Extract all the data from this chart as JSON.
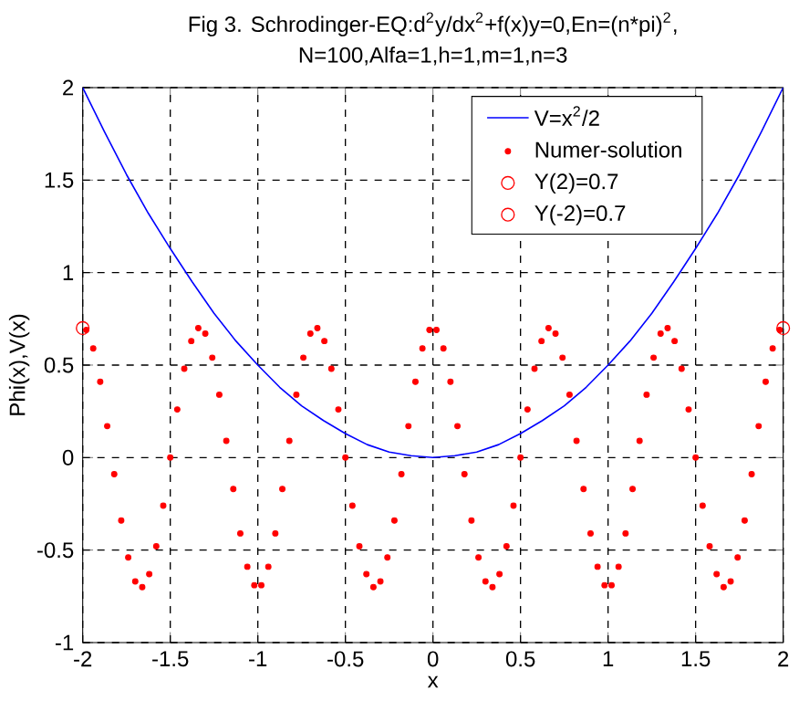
{
  "chart_data": {
    "type": "scatter",
    "title": "Fig 3. Schrodinger-EQ:d$^{2}$y/dx$^{2}$+f(x)y=0,En=(n*pi)$^{2}$,",
    "subtitle": "N=100,Alfa=1,h=1,m=1,n=3",
    "xlabel": "x",
    "ylabel": "Phi(x),V(x)",
    "xlim": [
      -2,
      2
    ],
    "ylim": [
      -1,
      2
    ],
    "xticks": [
      -2,
      -1.5,
      -1,
      -0.5,
      0,
      0.5,
      1,
      1.5,
      2
    ],
    "yticks": [
      -1,
      -0.5,
      0,
      0.5,
      1,
      1.5,
      2
    ],
    "grid": true,
    "legend": "top right",
    "series": [
      {
        "name": "V=x$^{2}$/2",
        "type": "line",
        "color": "#0000ff",
        "marker": "none",
        "line_style": "solid",
        "x": [
          -2,
          -1.875,
          -1.75,
          -1.625,
          -1.5,
          -1.375,
          -1.25,
          -1.125,
          -1,
          -0.875,
          -0.75,
          -0.625,
          -0.5,
          -0.375,
          -0.25,
          -0.125,
          0,
          0.125,
          0.25,
          0.375,
          0.5,
          0.625,
          0.75,
          0.875,
          1,
          1.125,
          1.25,
          1.375,
          1.5,
          1.625,
          1.75,
          1.875,
          2
        ],
        "values": [
          2,
          1.76,
          1.53,
          1.32,
          1.13,
          0.95,
          0.78,
          0.63,
          0.5,
          0.38,
          0.28,
          0.2,
          0.13,
          0.07,
          0.03,
          0.01,
          0,
          0.01,
          0.03,
          0.07,
          0.13,
          0.2,
          0.28,
          0.38,
          0.5,
          0.63,
          0.78,
          0.95,
          1.13,
          1.32,
          1.53,
          1.76,
          2
        ]
      },
      {
        "name": "Numer-solution",
        "color": "#ff0000",
        "marker": "circle",
        "x": [
          -1.98,
          -1.94,
          -1.9,
          -1.86,
          -1.82,
          -1.78,
          -1.74,
          -1.7,
          -1.66,
          -1.62,
          -1.58,
          -1.54,
          -1.5,
          -1.46,
          -1.42,
          -1.38,
          -1.34,
          -1.3,
          -1.26,
          -1.22,
          -1.18,
          -1.14,
          -1.1,
          -1.06,
          -1.02,
          -0.98,
          -0.94,
          -0.9,
          -0.86,
          -0.82,
          -0.78,
          -0.74,
          -0.7,
          -0.66,
          -0.62,
          -0.58,
          -0.54,
          -0.5,
          -0.46,
          -0.42,
          -0.38,
          -0.34,
          -0.3,
          -0.26,
          -0.22,
          -0.18,
          -0.14,
          -0.1,
          -0.06,
          -0.02,
          0.02,
          0.06,
          0.1,
          0.14,
          0.18,
          0.22,
          0.26,
          0.3,
          0.34,
          0.38,
          0.42,
          0.46,
          0.5,
          0.54,
          0.58,
          0.62,
          0.66,
          0.7,
          0.74,
          0.78,
          0.82,
          0.86,
          0.9,
          0.94,
          0.98,
          1.02,
          1.06,
          1.1,
          1.14,
          1.18,
          1.22,
          1.26,
          1.3,
          1.34,
          1.38,
          1.42,
          1.46,
          1.5,
          1.54,
          1.58,
          1.62,
          1.66,
          1.7,
          1.74,
          1.78,
          1.82,
          1.86,
          1.9,
          1.94,
          1.98
        ],
        "values": [
          0.69,
          0.59,
          0.41,
          0.17,
          -0.09,
          -0.34,
          -0.54,
          -0.67,
          -0.7,
          -0.63,
          -0.48,
          -0.26,
          0.0,
          0.26,
          0.48,
          0.63,
          0.7,
          0.67,
          0.54,
          0.34,
          0.09,
          -0.17,
          -0.41,
          -0.59,
          -0.69,
          -0.69,
          -0.59,
          -0.41,
          -0.17,
          0.09,
          0.34,
          0.54,
          0.67,
          0.7,
          0.63,
          0.48,
          0.26,
          0.0,
          -0.26,
          -0.48,
          -0.63,
          -0.7,
          -0.67,
          -0.54,
          -0.34,
          -0.09,
          0.17,
          0.41,
          0.59,
          0.69,
          0.69,
          0.59,
          0.41,
          0.17,
          -0.09,
          -0.34,
          -0.54,
          -0.67,
          -0.7,
          -0.63,
          -0.48,
          -0.26,
          0.0,
          0.26,
          0.48,
          0.63,
          0.7,
          0.67,
          0.54,
          0.34,
          0.09,
          -0.17,
          -0.41,
          -0.59,
          -0.69,
          -0.69,
          -0.59,
          -0.41,
          -0.17,
          0.09,
          0.34,
          0.54,
          0.67,
          0.7,
          0.63,
          0.48,
          0.26,
          0.0,
          -0.26,
          -0.48,
          -0.63,
          -0.7,
          -0.67,
          -0.54,
          -0.34,
          -0.09,
          0.17,
          0.41,
          0.59,
          0.69
        ]
      },
      {
        "name": "Y(2)=0.7",
        "color": "#ff0000",
        "marker": "circle",
        "x": [
          2
        ],
        "values": [
          0.7
        ]
      },
      {
        "name": "Y(-2)=0.7",
        "color": "#ff0000",
        "marker": "circle",
        "x": [
          -2
        ],
        "values": [
          0.7
        ]
      }
    ]
  }
}
